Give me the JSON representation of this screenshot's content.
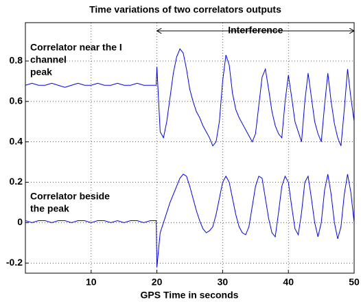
{
  "chart_data": {
    "type": "line",
    "title": "Time variations of two correlators outputs",
    "x_label": "GPS Time in seconds",
    "annotations": [
      {
        "lines": [
          "Correlator near the I",
          "channel",
          "peak"
        ]
      },
      {
        "lines": [
          "Correlator beside",
          "the peak"
        ]
      }
    ],
    "span_annotation": {
      "text": "Interference",
      "x": [
        20,
        50
      ]
    },
    "x": [
      0,
      1,
      2,
      3,
      4,
      5,
      6,
      7,
      8,
      9,
      10,
      11,
      12,
      13,
      14,
      15,
      16,
      17,
      18,
      19,
      19.9,
      20,
      20.5,
      21,
      21.5,
      22,
      22.5,
      23,
      23.5,
      24,
      24.5,
      25,
      25.5,
      26,
      26.5,
      27,
      27.5,
      28,
      28.5,
      29,
      29.5,
      30,
      30.5,
      31,
      31.5,
      32,
      32.5,
      33,
      33.5,
      34,
      34.5,
      35,
      35.5,
      36,
      36.5,
      37,
      37.5,
      38,
      38.5,
      39,
      39.5,
      40,
      40.5,
      41,
      41.5,
      42,
      42.5,
      43,
      43.5,
      44,
      44.5,
      45,
      45.5,
      46,
      46.5,
      47,
      47.5,
      48,
      48.5,
      49,
      49.5,
      50
    ],
    "series": [
      {
        "color": "#0000ff",
        "values": [
          0.68,
          0.69,
          0.68,
          0.68,
          0.69,
          0.68,
          0.67,
          0.68,
          0.69,
          0.68,
          0.68,
          0.69,
          0.68,
          0.68,
          0.69,
          0.68,
          0.68,
          0.69,
          0.68,
          0.68,
          0.68,
          0.77,
          0.45,
          0.42,
          0.5,
          0.62,
          0.74,
          0.82,
          0.86,
          0.84,
          0.76,
          0.66,
          0.6,
          0.55,
          0.52,
          0.48,
          0.45,
          0.42,
          0.38,
          0.4,
          0.5,
          0.7,
          0.83,
          0.78,
          0.64,
          0.56,
          0.52,
          0.49,
          0.46,
          0.43,
          0.4,
          0.44,
          0.58,
          0.72,
          0.76,
          0.66,
          0.55,
          0.48,
          0.44,
          0.42,
          0.6,
          0.73,
          0.62,
          0.5,
          0.45,
          0.4,
          0.6,
          0.74,
          0.62,
          0.5,
          0.44,
          0.4,
          0.58,
          0.74,
          0.6,
          0.49,
          0.42,
          0.38,
          0.56,
          0.76,
          0.62,
          0.5
        ]
      },
      {
        "color": "#0000ff",
        "values": [
          0.01,
          0.0,
          0.01,
          0.01,
          0.0,
          0.01,
          0.01,
          0.0,
          0.01,
          0.01,
          0.0,
          0.01,
          0.01,
          0.0,
          0.01,
          0.0,
          0.01,
          0.01,
          0.0,
          0.01,
          0.01,
          -0.22,
          -0.05,
          0.0,
          0.05,
          0.1,
          0.14,
          0.18,
          0.22,
          0.24,
          0.23,
          0.18,
          0.12,
          0.06,
          0.01,
          -0.03,
          -0.05,
          -0.04,
          -0.02,
          0.04,
          0.12,
          0.2,
          0.23,
          0.2,
          0.12,
          0.04,
          -0.02,
          -0.05,
          -0.06,
          -0.02,
          0.08,
          0.18,
          0.23,
          0.22,
          0.12,
          0.02,
          -0.05,
          -0.07,
          0.05,
          0.18,
          0.23,
          0.2,
          0.08,
          -0.03,
          -0.06,
          0.05,
          0.2,
          0.23,
          0.12,
          0.0,
          -0.07,
          0.0,
          0.16,
          0.24,
          0.14,
          0.0,
          -0.08,
          -0.02,
          0.14,
          0.24,
          0.15,
          0.0
        ]
      }
    ],
    "xlim": [
      0,
      50
    ],
    "ylim": [
      -0.25,
      0.99
    ],
    "xticks": [
      10,
      20,
      30,
      40,
      50
    ],
    "yticks": [
      -0.2,
      0,
      0.2,
      0.4,
      0.6,
      0.8
    ],
    "grid": true
  }
}
